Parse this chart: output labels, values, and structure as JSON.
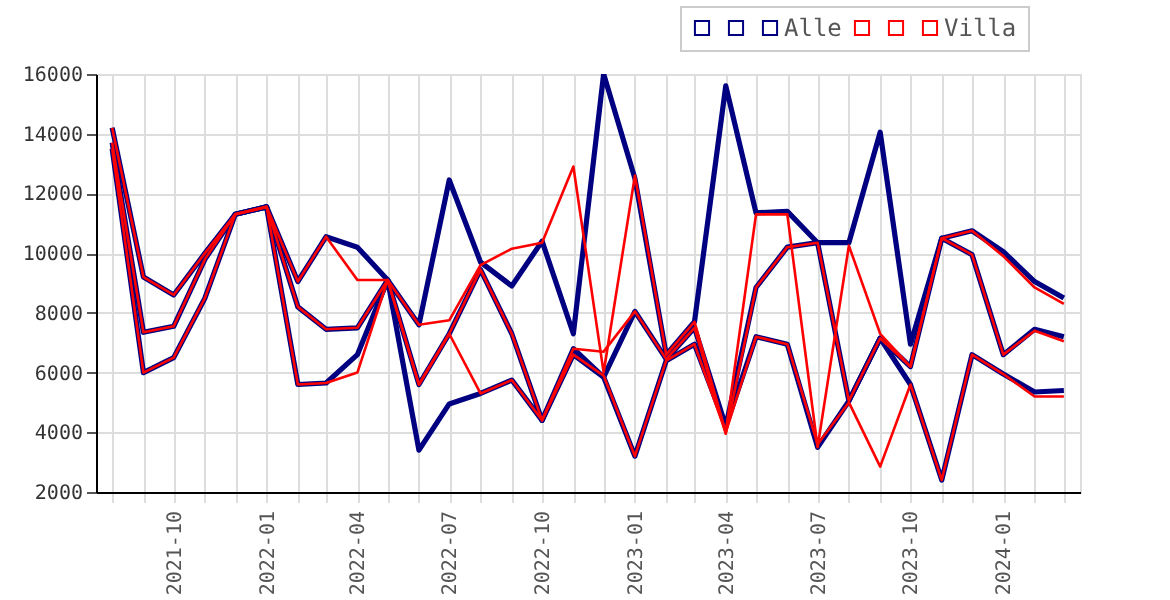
{
  "chart_data": {
    "type": "line",
    "x": [
      "2021-08",
      "2021-09",
      "2021-10",
      "2021-11",
      "2021-12",
      "2022-01",
      "2022-02",
      "2022-03",
      "2022-04",
      "2022-05",
      "2022-06",
      "2022-07",
      "2022-08",
      "2022-09",
      "2022-10",
      "2022-11",
      "2022-12",
      "2023-01",
      "2023-02",
      "2023-03",
      "2023-04",
      "2023-05",
      "2023-06",
      "2023-07",
      "2023-08",
      "2023-09",
      "2023-10",
      "2023-11",
      "2023-12",
      "2024-01",
      "2024-02",
      "2024-03"
    ],
    "series": [
      {
        "color": "#000080",
        "values": [
          14200,
          9200,
          8600,
          10000,
          11300,
          11550,
          9050,
          10550,
          10200,
          9100,
          7600,
          12450,
          9700,
          8900,
          10400,
          7300,
          16000,
          12500,
          6600,
          7700,
          15600,
          11350,
          11400,
          10350,
          10350,
          14050,
          6950,
          10500,
          10750,
          10050,
          9050,
          8500
        ]
      },
      {
        "color": "#000080",
        "values": [
          13700,
          7350,
          7550,
          9800,
          11300,
          11550,
          8200,
          7450,
          7500,
          9100,
          5600,
          7300,
          9450,
          7300,
          4400,
          6800,
          5850,
          8050,
          6450,
          7500,
          4200,
          8850,
          10200,
          10350,
          5050,
          7150,
          6200,
          10500,
          9950,
          6600,
          7450,
          7200
        ]
      },
      {
        "name": "Alle",
        "color": "#000080",
        "values": [
          13500,
          6000,
          6500,
          8500,
          11300,
          11550,
          5600,
          5650,
          6600,
          9100,
          3400,
          4950,
          5300,
          5750,
          4400,
          6600,
          5850,
          3200,
          6400,
          6950,
          4200,
          7200,
          6950,
          3500,
          5050,
          7150,
          5600,
          2400,
          6600,
          5950,
          5350,
          5400
        ]
      },
      {
        "color": "#ff0000",
        "values": [
          14200,
          9200,
          8600,
          10000,
          11300,
          11550,
          9050,
          10550,
          9100,
          9100,
          7600,
          7750,
          9600,
          10150,
          10350,
          12900,
          6000,
          12600,
          6600,
          7700,
          4000,
          11300,
          11300,
          3500,
          10250,
          7300,
          6200,
          10500,
          10750,
          9900,
          8850,
          8300
        ]
      },
      {
        "color": "#ff0000",
        "values": [
          13700,
          7350,
          7550,
          9800,
          11300,
          11550,
          8200,
          7450,
          7500,
          9100,
          5600,
          7300,
          9450,
          7300,
          4400,
          6800,
          6700,
          8050,
          6450,
          7500,
          3950,
          8850,
          10200,
          10350,
          5050,
          7150,
          6200,
          10500,
          9950,
          6600,
          7400,
          7050
        ]
      },
      {
        "name": "Villa",
        "color": "#ff0000",
        "values": [
          13500,
          6000,
          6500,
          8500,
          11300,
          11550,
          5600,
          5650,
          6000,
          9100,
          5600,
          7300,
          5300,
          5750,
          4400,
          6600,
          5900,
          3200,
          6400,
          6950,
          4000,
          7200,
          6950,
          3600,
          5000,
          2850,
          5600,
          2400,
          6600,
          5950,
          5200,
          5200
        ]
      }
    ],
    "xlim": [
      "2021-07-16",
      "2024-03-17"
    ],
    "xticks": [
      {
        "value": "2021-08",
        "label": null
      },
      {
        "value": "2021-09",
        "label": null
      },
      "2021-10",
      {
        "value": "2021-11",
        "label": null
      },
      {
        "value": "2021-12",
        "label": null
      },
      "2022-01",
      {
        "value": "2022-02",
        "label": null
      },
      {
        "value": "2022-03",
        "label": null
      },
      "2022-04",
      {
        "value": "2022-05",
        "label": null
      },
      {
        "value": "2022-06",
        "label": null
      },
      "2022-07",
      {
        "value": "2022-08",
        "label": null
      },
      {
        "value": "2022-09",
        "label": null
      },
      "2022-10",
      {
        "value": "2022-11",
        "label": null
      },
      {
        "value": "2022-12",
        "label": null
      },
      "2023-01",
      {
        "value": "2023-02",
        "label": null
      },
      {
        "value": "2023-03",
        "label": null
      },
      "2023-04",
      {
        "value": "2023-05",
        "label": null
      },
      {
        "value": "2023-06",
        "label": null
      },
      "2023-07",
      {
        "value": "2023-08",
        "label": null
      },
      {
        "value": "2023-09",
        "label": null
      },
      "2023-10",
      {
        "value": "2023-11",
        "label": null
      },
      {
        "value": "2023-12",
        "label": null
      },
      "2024-01",
      {
        "value": "2024-02",
        "label": null
      },
      {
        "value": "2024-03",
        "label": null
      }
    ],
    "ylim": [
      2000,
      16000
    ],
    "yticks": [
      2000,
      4000,
      6000,
      8000,
      10000,
      12000,
      14000,
      16000
    ],
    "grid": true,
    "legend": "top right",
    "marker": "none",
    "line_style": "solid"
  }
}
